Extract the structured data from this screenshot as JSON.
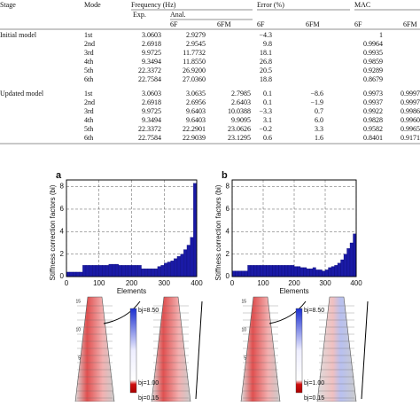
{
  "table": {
    "header": {
      "stage": "Stage",
      "mode": "Mode",
      "frequency": "Frequency (Hz)",
      "exp": "Exp.",
      "anal": "Anal.",
      "error": "Error (%)",
      "mac": "MAC",
      "sub": [
        "6F",
        "6FM",
        "6F",
        "6FM",
        "6F",
        "6FM"
      ]
    },
    "rows": [
      [
        "Initial model",
        "1st",
        "3.0603",
        "2.9279",
        null,
        "−4.3",
        null,
        "1",
        null
      ],
      [
        null,
        "2nd",
        "2.6918",
        "2.9545",
        null,
        "9.8",
        null,
        "0.9964",
        null
      ],
      [
        null,
        "3rd",
        "9.9725",
        "11.7732",
        null,
        "18.1",
        null,
        "0.9935",
        null
      ],
      [
        null,
        "4th",
        "9.3494",
        "11.8550",
        null,
        "26.8",
        null,
        "0.9859",
        null
      ],
      [
        null,
        "5th",
        "22.3372",
        "26.9200",
        null,
        "20.5",
        null,
        "0.9289",
        null
      ],
      [
        null,
        "6th",
        "22.7584",
        "27.0360",
        null,
        "18.8",
        null,
        "0.8679",
        null
      ],
      [
        "Updated model",
        "1st",
        "3.0603",
        "3.0635",
        "2.7985",
        "0.1",
        "−8.6",
        "0.9973",
        "0.9997"
      ],
      [
        null,
        "2nd",
        "2.6918",
        "2.6956",
        "2.6403",
        "0.1",
        "−1.9",
        "0.9937",
        "0.9997"
      ],
      [
        null,
        "3rd",
        "9.9725",
        "9.6403",
        "10.0388",
        "−3.3",
        "0.7",
        "0.9922",
        "0.9986"
      ],
      [
        null,
        "4th",
        "9.3494",
        "9.6403",
        "9.9095",
        "3.1",
        "6.0",
        "0.9828",
        "0.9960"
      ],
      [
        null,
        "5th",
        "22.3372",
        "22.2901",
        "23.0626",
        "−0.2",
        "3.3",
        "0.9582",
        "0.9965"
      ],
      [
        null,
        "6th",
        "22.7584",
        "22.9039",
        "23.1295",
        "0.6",
        "1.6",
        "0.8401",
        "0.9171"
      ]
    ]
  },
  "chart_data": [
    {
      "type": "bar",
      "title": "a",
      "xlabel": "Elements",
      "ylabel": "Stiffness correction factors (bi)",
      "color": "#1a1aa6",
      "grid": true,
      "xlim": [
        0,
        400
      ],
      "xticks": [
        0,
        100,
        200,
        300,
        400
      ],
      "ylim": [
        0,
        8.6
      ],
      "yticks": [
        0,
        2,
        4,
        6,
        8
      ],
      "x": [
        5,
        15,
        25,
        35,
        45,
        55,
        65,
        75,
        85,
        95,
        105,
        115,
        125,
        135,
        145,
        155,
        165,
        175,
        185,
        195,
        205,
        215,
        225,
        235,
        245,
        255,
        265,
        275,
        285,
        295,
        305,
        315,
        325,
        335,
        345,
        355,
        365,
        375,
        385,
        395
      ],
      "values": [
        0.4,
        0.4,
        0.4,
        0.4,
        0.4,
        1.0,
        1.0,
        1.0,
        1.0,
        1.0,
        1.0,
        1.0,
        1.0,
        1.1,
        1.1,
        1.1,
        1.0,
        1.0,
        1.0,
        1.0,
        1.0,
        1.0,
        1.0,
        0.7,
        0.7,
        0.7,
        0.7,
        0.7,
        0.9,
        1.0,
        1.2,
        1.3,
        1.4,
        1.6,
        1.8,
        2.0,
        2.4,
        2.8,
        3.5,
        8.3
      ]
    },
    {
      "type": "bar",
      "title": "b",
      "xlabel": "Elements",
      "ylabel": "Stiffness correction factors (bi)",
      "color": "#1a1aa6",
      "grid": true,
      "xlim": [
        0,
        400
      ],
      "xticks": [
        0,
        100,
        200,
        300,
        400
      ],
      "ylim": [
        0,
        8.6
      ],
      "yticks": [
        0,
        2,
        4,
        6,
        8
      ],
      "x": [
        5,
        15,
        25,
        35,
        45,
        55,
        65,
        75,
        85,
        95,
        105,
        115,
        125,
        135,
        145,
        155,
        165,
        175,
        185,
        195,
        205,
        215,
        225,
        235,
        245,
        255,
        265,
        275,
        285,
        295,
        305,
        315,
        325,
        335,
        345,
        355,
        365,
        375,
        385,
        395
      ],
      "values": [
        0.5,
        0.5,
        0.5,
        0.5,
        0.5,
        1.0,
        1.0,
        1.0,
        1.0,
        1.0,
        1.0,
        1.0,
        1.0,
        1.0,
        1.0,
        1.0,
        1.0,
        1.0,
        1.0,
        1.0,
        0.9,
        0.9,
        0.8,
        0.8,
        0.7,
        0.7,
        0.8,
        0.6,
        0.6,
        0.5,
        0.6,
        0.8,
        0.9,
        1.0,
        1.2,
        1.5,
        2.0,
        2.5,
        3.0,
        3.8
      ]
    }
  ],
  "figure": {
    "colorbar_labels": [
      "bj=8.50",
      "bj=1.00",
      "bj=0.15"
    ],
    "tower_ticks": [
      "15",
      "10",
      "5"
    ]
  }
}
